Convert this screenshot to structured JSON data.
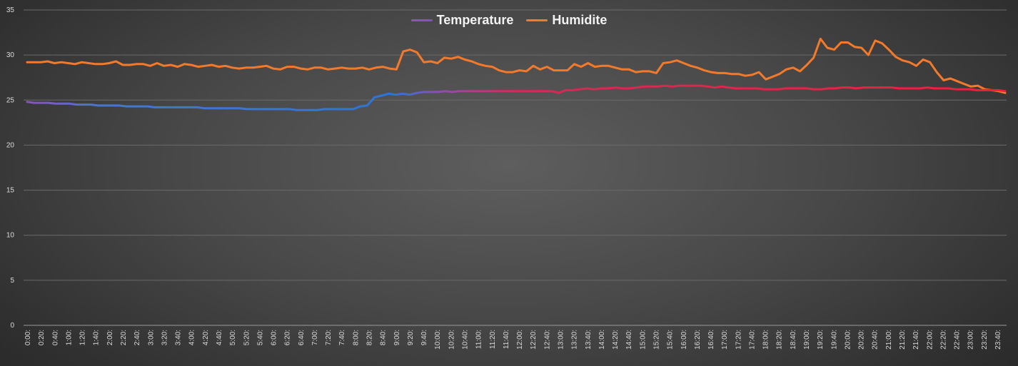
{
  "chart_data": {
    "type": "line",
    "title": "",
    "xlabel": "",
    "ylabel": "",
    "ylim": [
      0,
      35
    ],
    "yticks": [
      0,
      5,
      10,
      15,
      20,
      25,
      30,
      35
    ],
    "grid": true,
    "legend_position": "top-center",
    "x_tick_labels": [
      "0:00:",
      "0:20:",
      "0:40:",
      "1:00:",
      "1:20:",
      "1:40:",
      "2:00:",
      "2:20:",
      "2:40:",
      "3:00:",
      "3:20:",
      "3:40:",
      "4:00:",
      "4:20:",
      "4:40:",
      "5:00:",
      "5:20:",
      "5:40:",
      "6:00:",
      "6:20:",
      "6:40:",
      "7:00:",
      "7:20:",
      "7:40:",
      "8:00:",
      "8:20:",
      "8:40:",
      "9:00:",
      "9:20:",
      "9:40:",
      "10:00:",
      "10:20:",
      "10:40:",
      "11:00:",
      "11:20:",
      "11:40:",
      "12:00:",
      "12:20:",
      "12:40:",
      "13:00:",
      "13:20:",
      "13:40:",
      "14:00:",
      "14:20:",
      "14:40:",
      "15:00:",
      "15:20:",
      "15:40:",
      "16:00:",
      "16:20:",
      "16:40:",
      "17:00:",
      "17:20:",
      "17:40:",
      "18:00:",
      "18:20:",
      "18:40:",
      "19:00:",
      "19:20:",
      "19:40:",
      "20:00:",
      "20:20:",
      "20:40:",
      "21:00:",
      "21:20:",
      "21:40:",
      "22:00:",
      "22:20:",
      "22:40:",
      "23:00:",
      "23:20:",
      "23:40:"
    ],
    "series": [
      {
        "name": "Temperature",
        "gradient_colors": [
          "#8e4fc0",
          "#4677d0",
          "#2e74d8",
          "#8a4fb8",
          "#d42a5a",
          "#ee1f3d"
        ],
        "values": [
          24.8,
          24.7,
          24.7,
          24.7,
          24.6,
          24.6,
          24.6,
          24.5,
          24.5,
          24.5,
          24.4,
          24.4,
          24.4,
          24.4,
          24.3,
          24.3,
          24.3,
          24.3,
          24.2,
          24.2,
          24.2,
          24.2,
          24.2,
          24.2,
          24.2,
          24.1,
          24.1,
          24.1,
          24.1,
          24.1,
          24.1,
          24.0,
          24.0,
          24.0,
          24.0,
          24.0,
          24.0,
          24.0,
          23.9,
          23.9,
          23.9,
          23.9,
          24.0,
          24.0,
          24.0,
          24.0,
          24.0,
          24.3,
          24.4,
          25.3,
          25.5,
          25.7,
          25.6,
          25.7,
          25.6,
          25.8,
          25.9,
          25.9,
          25.9,
          26.0,
          25.9,
          26.0,
          26.0,
          26.0,
          26.0,
          26.0,
          26.0,
          26.0,
          26.0,
          26.0,
          26.0,
          26.0,
          26.0,
          26.0,
          26.0,
          25.8,
          26.1,
          26.1,
          26.2,
          26.3,
          26.2,
          26.3,
          26.3,
          26.4,
          26.3,
          26.3,
          26.4,
          26.5,
          26.5,
          26.5,
          26.6,
          26.5,
          26.6,
          26.6,
          26.6,
          26.6,
          26.5,
          26.4,
          26.5,
          26.4,
          26.3,
          26.3,
          26.3,
          26.3,
          26.2,
          26.2,
          26.2,
          26.3,
          26.3,
          26.3,
          26.3,
          26.2,
          26.2,
          26.3,
          26.3,
          26.4,
          26.4,
          26.3,
          26.4,
          26.4,
          26.4,
          26.4,
          26.4,
          26.3,
          26.3,
          26.3,
          26.3,
          26.4,
          26.3,
          26.3,
          26.3,
          26.2,
          26.2,
          26.2,
          26.1,
          26.1,
          26.1,
          26.1,
          26.0
        ]
      },
      {
        "name": "Humidite",
        "color": "#f47a2b",
        "values": [
          29.2,
          29.2,
          29.2,
          29.3,
          29.1,
          29.2,
          29.1,
          29.0,
          29.2,
          29.1,
          29.0,
          29.0,
          29.1,
          29.3,
          28.9,
          28.9,
          29.0,
          29.0,
          28.8,
          29.1,
          28.8,
          28.9,
          28.7,
          29.0,
          28.9,
          28.7,
          28.8,
          28.9,
          28.7,
          28.8,
          28.6,
          28.5,
          28.6,
          28.6,
          28.7,
          28.8,
          28.5,
          28.4,
          28.7,
          28.7,
          28.5,
          28.4,
          28.6,
          28.6,
          28.4,
          28.5,
          28.6,
          28.5,
          28.5,
          28.6,
          28.4,
          28.6,
          28.7,
          28.5,
          28.4,
          30.4,
          30.6,
          30.3,
          29.2,
          29.3,
          29.1,
          29.7,
          29.6,
          29.8,
          29.5,
          29.3,
          29.0,
          28.8,
          28.7,
          28.3,
          28.1,
          28.1,
          28.3,
          28.2,
          28.8,
          28.4,
          28.7,
          28.3,
          28.3,
          28.3,
          29.0,
          28.7,
          29.1,
          28.7,
          28.8,
          28.8,
          28.6,
          28.4,
          28.4,
          28.1,
          28.2,
          28.2,
          28.0,
          29.1,
          29.2,
          29.4,
          29.1,
          28.8,
          28.6,
          28.3,
          28.1,
          28.0,
          28.0,
          27.9,
          27.9,
          27.7,
          27.8,
          28.1,
          27.3,
          27.6,
          27.9,
          28.4,
          28.6,
          28.2,
          28.9,
          29.7,
          31.8,
          30.8,
          30.6,
          31.4,
          31.4,
          30.9,
          30.8,
          30.0,
          31.6,
          31.3,
          30.6,
          29.8,
          29.4,
          29.2,
          28.8,
          29.5,
          29.2,
          28.1,
          27.2,
          27.4,
          27.1,
          26.8,
          26.5,
          26.6,
          26.2,
          26.1,
          26.0,
          25.8
        ]
      }
    ]
  }
}
